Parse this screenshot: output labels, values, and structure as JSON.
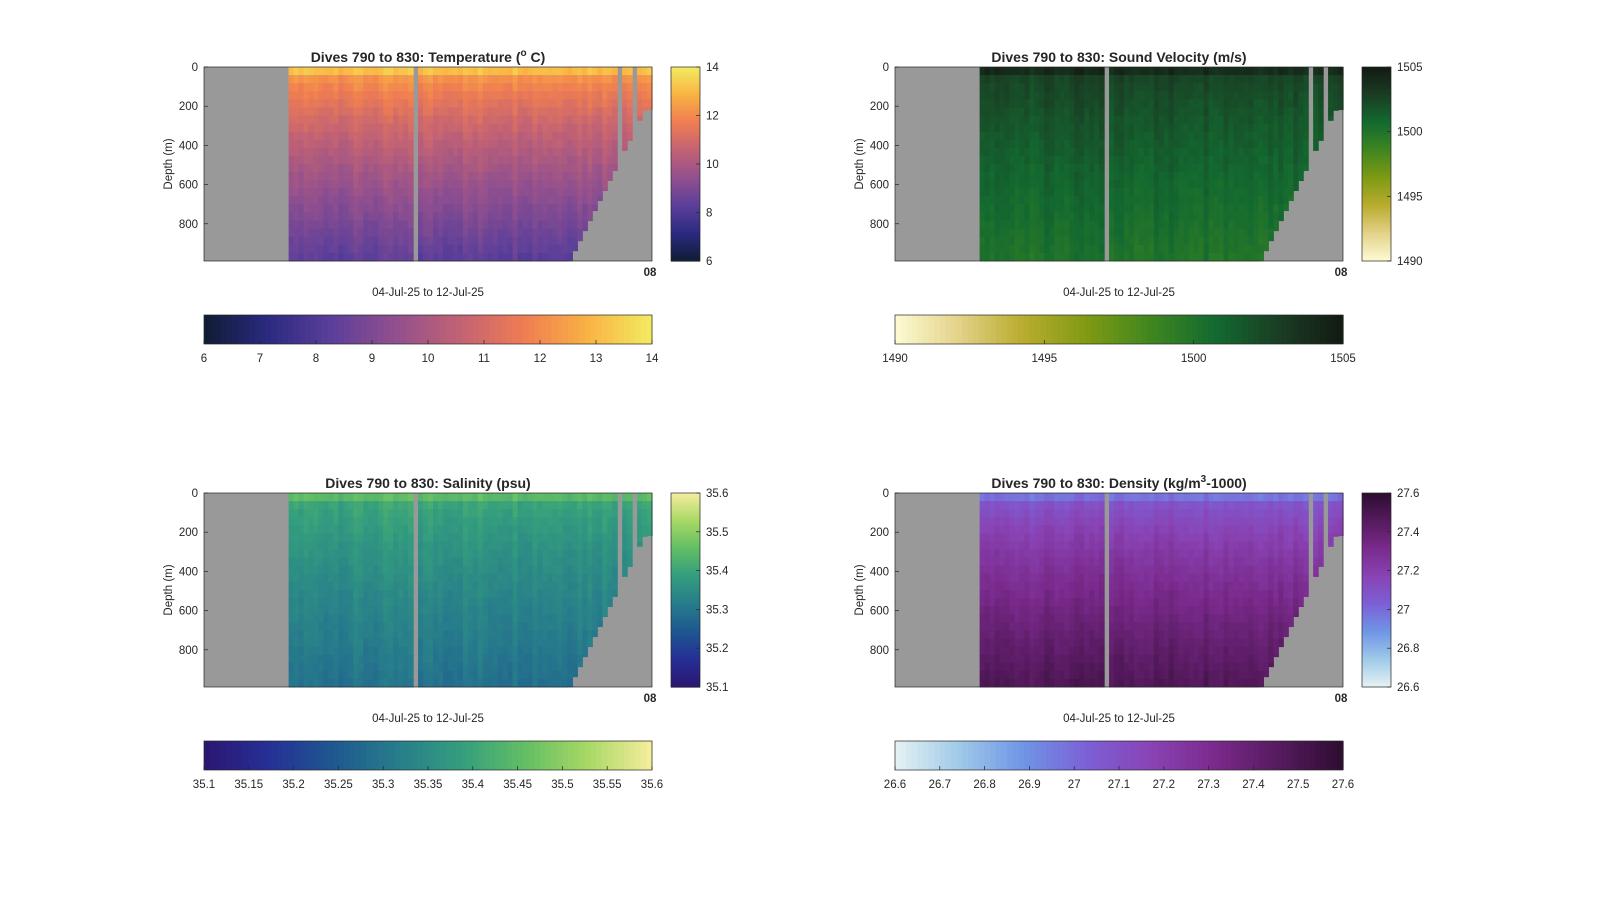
{
  "chart_data": [
    {
      "type": "heatmap",
      "title": "Dives 790 to 830: Temperature (",
      "title_sup": "o",
      "title_tail": " C)",
      "xlabel": "04-Jul-25 to 12-Jul-25",
      "ylabel": "Depth (m)",
      "y_ticks": [
        "0",
        "200",
        "400",
        "600",
        "800"
      ],
      "ylim": [
        0,
        990
      ],
      "x_tick_label": "08",
      "colormap": [
        "#0f1c34",
        "#2b2a80",
        "#5c3f9a",
        "#92508e",
        "#c26274",
        "#ef7d52",
        "#f9b243",
        "#f3ec62"
      ],
      "clim": [
        6,
        14
      ],
      "right_colorbar_ticks": [
        "14",
        "12",
        "10",
        "8",
        "6"
      ],
      "bottom_colorbar_ticks": [
        "6",
        "7",
        "8",
        "9",
        "10",
        "11",
        "12",
        "13",
        "14"
      ],
      "surface_value": 13.6,
      "bottom_value": 7.4
    },
    {
      "type": "heatmap",
      "title": "Dives 790 to 830: Sound Velocity (m/s)",
      "xlabel": "04-Jul-25 to 12-Jul-25",
      "ylabel": "Depth (m)",
      "y_ticks": [
        "0",
        "200",
        "400",
        "600",
        "800"
      ],
      "ylim": [
        0,
        990
      ],
      "x_tick_label": "08",
      "colormap": [
        "#fdfbd4",
        "#e3d288",
        "#b9ac2e",
        "#7f9a14",
        "#3f861f",
        "#136a30",
        "#1a3d24",
        "#121b12"
      ],
      "clim": [
        1490,
        1505
      ],
      "right_colorbar_ticks": [
        "1505",
        "1500",
        "1495",
        "1490"
      ],
      "bottom_colorbar_ticks": [
        "1490",
        "1495",
        "1500",
        "1505"
      ],
      "surface_value": 1503.5,
      "bottom_value": 1499.5
    },
    {
      "type": "heatmap",
      "title": "Dives 790 to 830: Salinity (psu)",
      "xlabel": "04-Jul-25 to 12-Jul-25",
      "ylabel": "Depth (m)",
      "y_ticks": [
        "0",
        "200",
        "400",
        "600",
        "800"
      ],
      "ylim": [
        0,
        990
      ],
      "x_tick_label": "08",
      "colormap": [
        "#2b1670",
        "#262f96",
        "#1e5790",
        "#277c8b",
        "#339d7e",
        "#62be64",
        "#a8d865",
        "#f6ee9e"
      ],
      "clim": [
        35.1,
        35.6
      ],
      "right_colorbar_ticks": [
        "35.6",
        "35.5",
        "35.4",
        "35.3",
        "35.2",
        "35.1"
      ],
      "bottom_colorbar_ticks": [
        "35.1",
        "35.15",
        "35.2",
        "35.25",
        "35.3",
        "35.35",
        "35.4",
        "35.45",
        "35.5",
        "35.55",
        "35.6"
      ],
      "surface_value": 35.44,
      "bottom_value": 35.27
    },
    {
      "type": "heatmap",
      "title": "Dives 790 to 830: Density (kg/m",
      "title_sup": "3",
      "title_tail": "-1000)",
      "xlabel": "04-Jul-25 to 12-Jul-25",
      "ylabel": "Depth (m)",
      "y_ticks": [
        "0",
        "200",
        "400",
        "600",
        "800"
      ],
      "ylim": [
        0,
        990
      ],
      "x_tick_label": "08",
      "colormap": [
        "#e6f2f4",
        "#9fcae8",
        "#6f95e6",
        "#7c60d6",
        "#8943b4",
        "#7a2a8c",
        "#561a5e",
        "#2d0d30"
      ],
      "clim": [
        26.6,
        27.6
      ],
      "right_colorbar_ticks": [
        "27.6",
        "27.4",
        "27.2",
        "27",
        "26.8",
        "26.6"
      ],
      "bottom_colorbar_ticks": [
        "26.6",
        "26.7",
        "26.8",
        "26.9",
        "27",
        "27.1",
        "27.2",
        "27.3",
        "27.4",
        "27.5",
        "27.6"
      ],
      "surface_value": 26.95,
      "bottom_value": 27.58
    }
  ],
  "colors": {
    "no_data": "#999999",
    "axis": "#262626",
    "background": "#ffffff"
  }
}
